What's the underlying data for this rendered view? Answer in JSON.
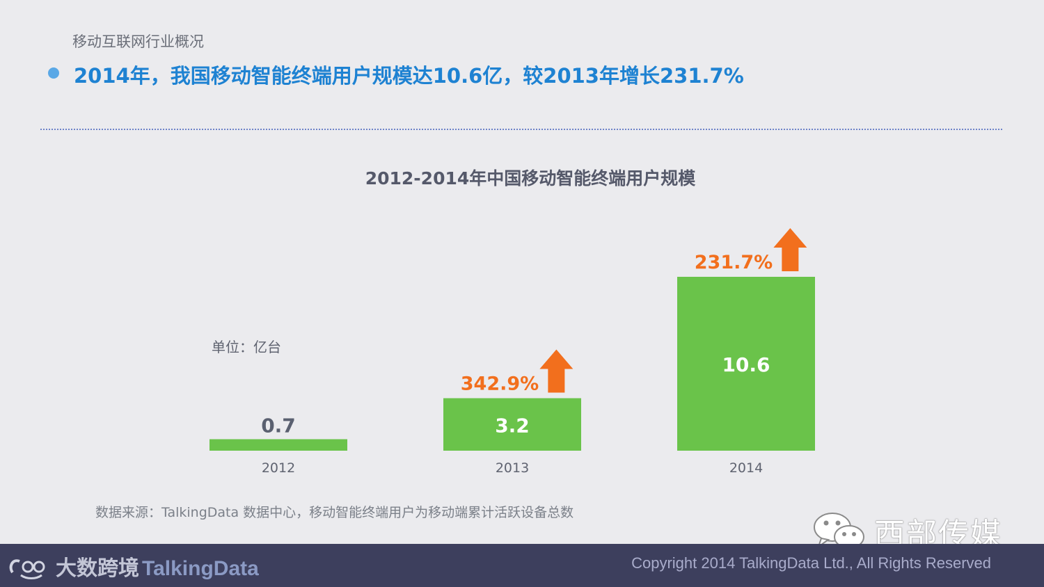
{
  "header": {
    "section_label": "移动互联网行业概况",
    "headline": "2014年，我国移动智能终端用户规模达10.6亿，较2013年增长231.7%"
  },
  "chart_data": {
    "type": "bar",
    "title": "2012-2014年中国移动智能终端用户规模",
    "unit_label": "单位：亿台",
    "categories": [
      "2012",
      "2013",
      "2014"
    ],
    "values": [
      0.7,
      3.2,
      10.6
    ],
    "value_labels": [
      "0.7",
      "3.2",
      "10.6"
    ],
    "growth_labels": [
      "",
      "342.9%",
      "231.7%"
    ],
    "ylim": [
      0,
      10.6
    ],
    "grid": false,
    "bar_color": "#6ac34a",
    "growth_color": "#f26f1d"
  },
  "source_note": "数据来源：TalkingData 数据中心，移动智能终端用户为移动端累计活跃设备总数",
  "watermark": {
    "text": "西部传媒",
    "icon": "wechat-icon"
  },
  "footer": {
    "logo_prefix": "大数跨境",
    "logo_brand": "TalkingData",
    "copyright": "Copyright 2014 TalkingData Ltd., All Rights Reserved"
  }
}
